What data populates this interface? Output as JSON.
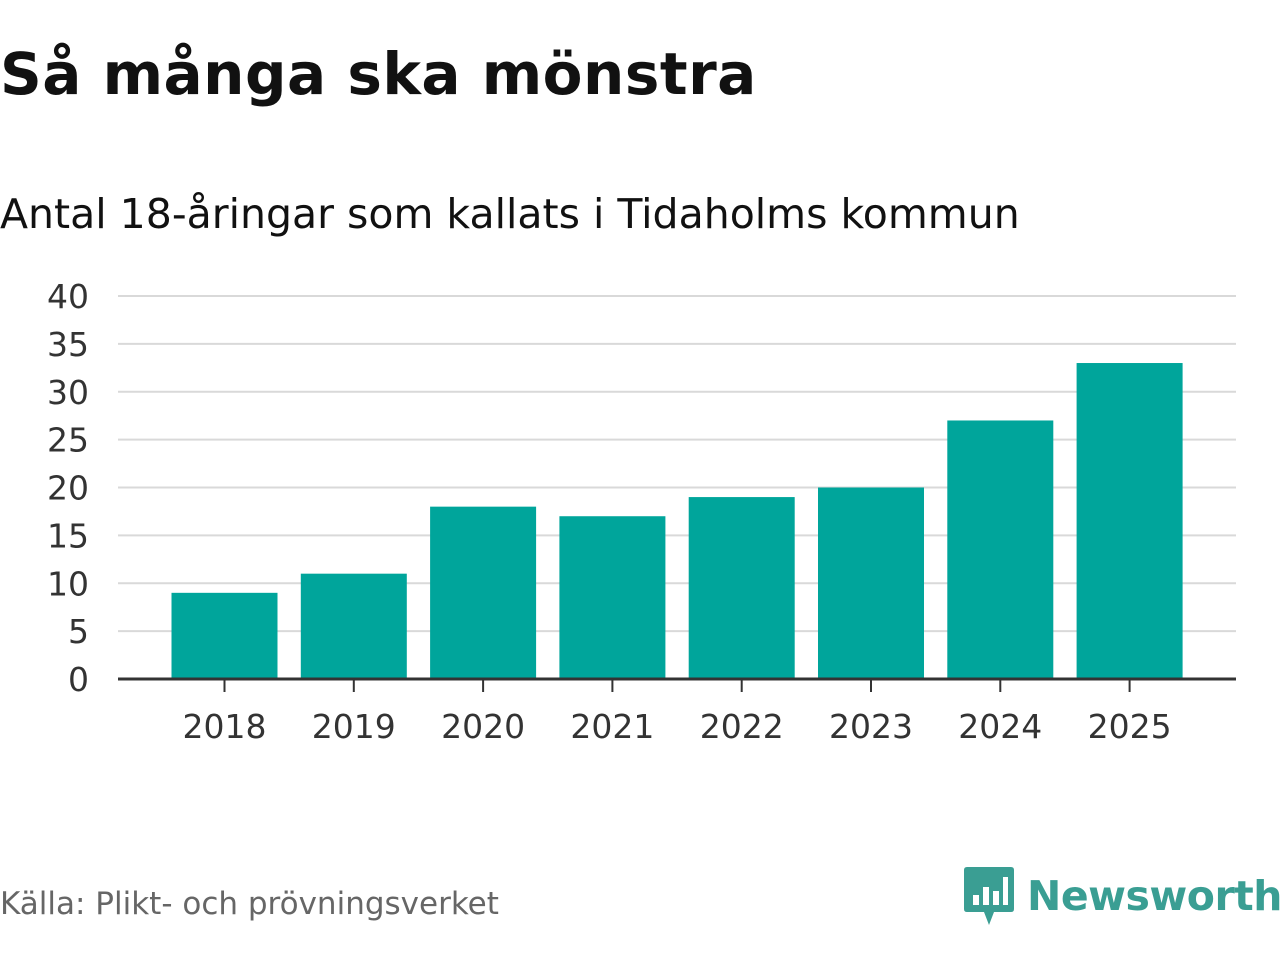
{
  "chart_data": {
    "type": "bar",
    "title": "Så många ska mönstra",
    "subtitle": "Antal 18-åringar som kallats i Tidaholms kommun",
    "categories": [
      "2018",
      "2019",
      "2020",
      "2021",
      "2022",
      "2023",
      "2024",
      "2025"
    ],
    "values": [
      9,
      11,
      18,
      17,
      19,
      20,
      27,
      33
    ],
    "ylim": [
      0,
      40
    ],
    "yticks": [
      0,
      5,
      10,
      15,
      20,
      25,
      30,
      35,
      40
    ],
    "xlabel": "",
    "ylabel": "",
    "grid": true,
    "bar_color": "#00a59b"
  },
  "footer": {
    "source": "Källa: Plikt- och prövningsverket",
    "brand": "Newsworthy"
  },
  "colors": {
    "brand": "#3a9e93",
    "grid": "#d9d9d9",
    "axis": "#333333"
  }
}
